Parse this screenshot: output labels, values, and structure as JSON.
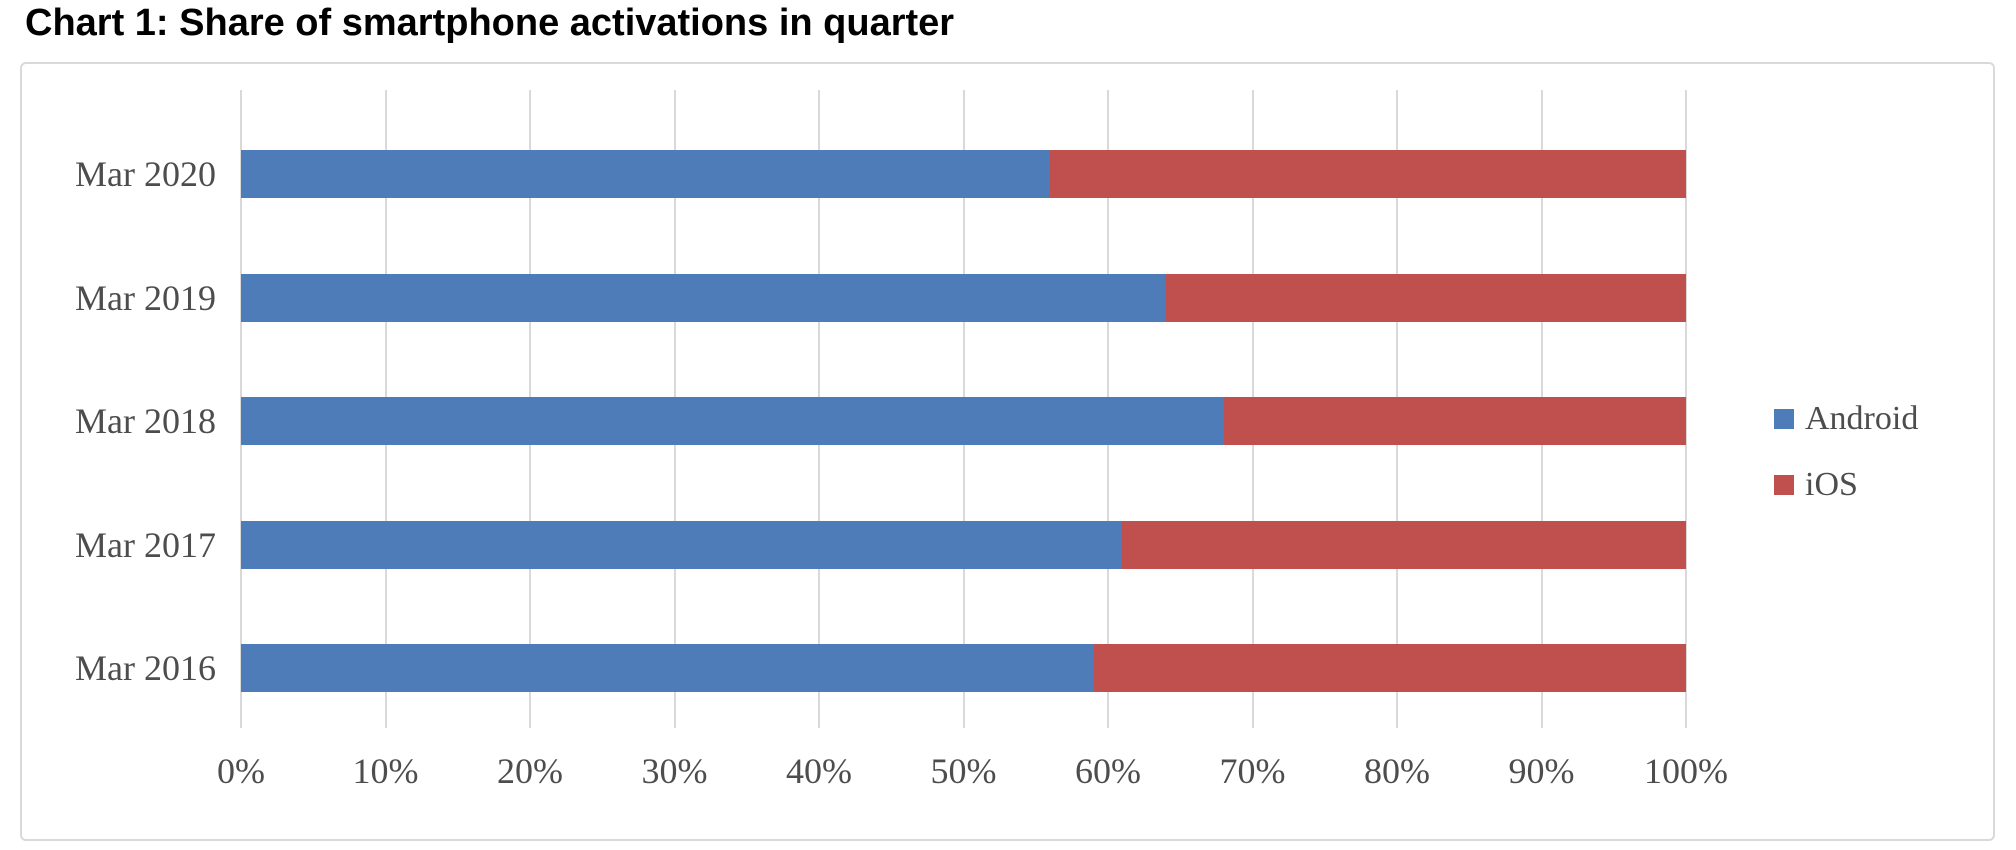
{
  "title": "Chart 1: Share of smartphone activations in quarter",
  "chart_data": {
    "type": "bar",
    "orientation": "horizontal",
    "stacked": true,
    "title": "Chart 1: Share of smartphone activations in quarter",
    "categories": [
      "Mar 2020",
      "Mar 2019",
      "Mar 2018",
      "Mar 2017",
      "Mar 2016"
    ],
    "series": [
      {
        "name": "Android",
        "color": "#4e7cb8",
        "values": [
          56,
          64,
          68,
          61,
          59
        ]
      },
      {
        "name": "iOS",
        "color": "#c0504d",
        "values": [
          44,
          36,
          32,
          39,
          41
        ]
      }
    ],
    "xlabel": "",
    "ylabel": "",
    "xlim": [
      0,
      100
    ],
    "tick_step": 10,
    "tick_labels": [
      "0%",
      "10%",
      "20%",
      "30%",
      "40%",
      "50%",
      "60%",
      "70%",
      "80%",
      "90%",
      "100%"
    ],
    "grid": "vertical",
    "gridline_color": "#d9d9d9",
    "legend_position": "right",
    "legend_entries": [
      "Android",
      "iOS"
    ],
    "text_color": "#4d4d4d",
    "border_color": "#d9d9d9",
    "background": "#ffffff"
  }
}
